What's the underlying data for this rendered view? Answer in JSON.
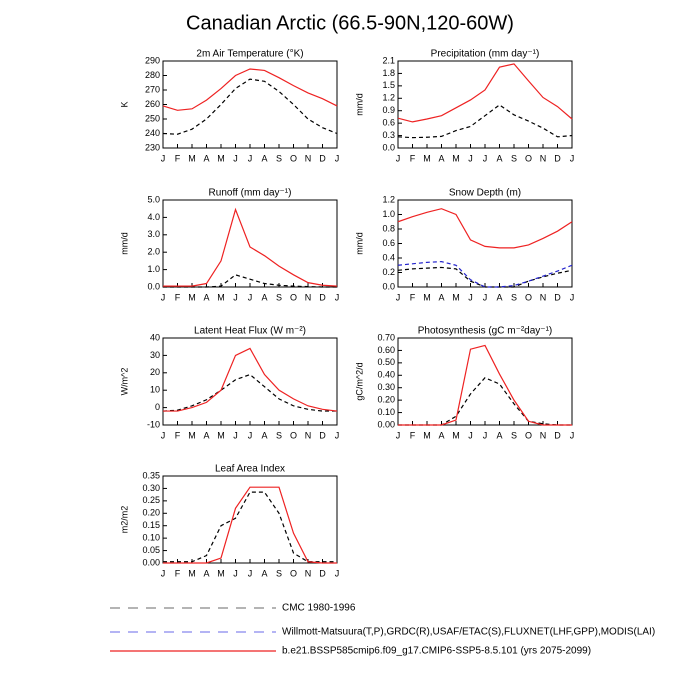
{
  "title": "Canadian Arctic (66.5-90N,120-60W)",
  "legend": [
    {
      "name": "CMC 1980-1996",
      "color": "#888888",
      "dash": true
    },
    {
      "name": "Willmott-Matsuura(T,P),GRDC(R),USAF/ETAC(S),FLUXNET(LHF,GPP),MODIS(LAI)",
      "color": "#8888ee",
      "dash": true
    },
    {
      "name": "b.e21.BSSP585cmip6.f09_g17.CMIP6-SSP5-8.5.101 (yrs 2075-2099)",
      "color": "#ee2222",
      "dash": false
    }
  ],
  "chart_data": [
    {
      "type": "line",
      "title": "2m Air Temperature (°K)",
      "y_label": "K",
      "categories": [
        "J",
        "F",
        "M",
        "A",
        "M",
        "J",
        "J",
        "A",
        "S",
        "O",
        "N",
        "D",
        "J"
      ],
      "ylim": [
        230,
        290
      ],
      "yticks": [
        230,
        240,
        250,
        260,
        270,
        280,
        290
      ],
      "series": [
        {
          "color": "#000000",
          "dash": true,
          "values": [
            240,
            239.5,
            243,
            250,
            260,
            271,
            277.5,
            276,
            269,
            260,
            250,
            244,
            240
          ]
        },
        {
          "color": "#ee2222",
          "dash": false,
          "values": [
            259,
            256,
            257,
            263,
            271,
            280,
            284.5,
            283.5,
            278.5,
            273,
            268,
            264,
            259
          ]
        }
      ]
    },
    {
      "type": "line",
      "title": "Precipitation (mm day⁻¹)",
      "y_label": "mm/d",
      "categories": [
        "J",
        "F",
        "M",
        "A",
        "M",
        "J",
        "J",
        "A",
        "S",
        "O",
        "N",
        "D",
        "J"
      ],
      "ylim": [
        0,
        2.1
      ],
      "yticks": [
        {
          "value": 0,
          "label": "0.0"
        },
        0.3,
        0.6,
        0.9,
        1.2,
        1.5,
        1.8,
        2.1
      ],
      "series": [
        {
          "color": "#000000",
          "dash": true,
          "values": [
            0.27,
            0.25,
            0.26,
            0.28,
            0.42,
            0.52,
            0.78,
            1.04,
            0.8,
            0.65,
            0.48,
            0.27,
            0.3
          ]
        },
        {
          "color": "#ee2222",
          "dash": false,
          "values": [
            0.72,
            0.63,
            0.7,
            0.78,
            0.97,
            1.16,
            1.4,
            1.95,
            2.03,
            1.62,
            1.22,
            1.0,
            0.7
          ]
        }
      ]
    },
    {
      "type": "line",
      "title": "Runoff (mm day⁻¹)",
      "y_label": "mm/d",
      "categories": [
        "J",
        "F",
        "M",
        "A",
        "M",
        "J",
        "J",
        "A",
        "S",
        "O",
        "N",
        "D",
        "J"
      ],
      "ylim": [
        0,
        5
      ],
      "yticks": [
        {
          "value": 0,
          "label": "0.0"
        },
        {
          "value": 1,
          "label": "1.0"
        },
        {
          "value": 2,
          "label": "2.0"
        },
        {
          "value": 3,
          "label": "3.0"
        },
        {
          "value": 4,
          "label": "4.0"
        },
        {
          "value": 5,
          "label": "5.0"
        }
      ],
      "series": [
        {
          "color": "#000000",
          "dash": true,
          "values": [
            0,
            0,
            0,
            0,
            0.05,
            0.7,
            0.45,
            0.2,
            0.1,
            0.05,
            0.02,
            0,
            0
          ]
        },
        {
          "color": "#ee2222",
          "dash": false,
          "values": [
            0.05,
            0.05,
            0.05,
            0.2,
            1.5,
            4.45,
            2.3,
            1.8,
            1.2,
            0.7,
            0.25,
            0.1,
            0.05
          ]
        }
      ]
    },
    {
      "type": "line",
      "title": "Snow Depth (m)",
      "y_label": "mm/d",
      "categories": [
        "J",
        "F",
        "M",
        "A",
        "M",
        "J",
        "J",
        "A",
        "S",
        "O",
        "N",
        "D",
        "J"
      ],
      "ylim": [
        0,
        1.2
      ],
      "yticks": [
        {
          "value": 0,
          "label": "0.0"
        },
        0.2,
        0.4,
        0.6,
        0.8,
        {
          "value": 1,
          "label": "1.0"
        },
        1.2
      ],
      "series": [
        {
          "color": "#000000",
          "dash": true,
          "values": [
            0.23,
            0.25,
            0.26,
            0.27,
            0.25,
            0.08,
            0,
            0,
            0,
            0.08,
            0.14,
            0.19,
            0.23
          ]
        },
        {
          "color": "#2222cc",
          "dash": true,
          "values": [
            0.3,
            0.32,
            0.34,
            0.35,
            0.3,
            0.1,
            0,
            0,
            0.02,
            0.08,
            0.15,
            0.22,
            0.3
          ]
        },
        {
          "color": "#ee2222",
          "dash": false,
          "values": [
            0.9,
            0.97,
            1.03,
            1.08,
            1.0,
            0.65,
            0.56,
            0.54,
            0.54,
            0.58,
            0.67,
            0.77,
            0.9
          ]
        }
      ]
    },
    {
      "type": "line",
      "title": "Latent Heat Flux (W m⁻²)",
      "y_label": "W/m^2",
      "categories": [
        "J",
        "F",
        "M",
        "A",
        "M",
        "J",
        "J",
        "A",
        "S",
        "O",
        "N",
        "D",
        "J"
      ],
      "ylim": [
        -10,
        40
      ],
      "yticks": [
        -10,
        0,
        10,
        20,
        30,
        40
      ],
      "series": [
        {
          "color": "#000000",
          "dash": true,
          "values": [
            -2,
            -1.5,
            1,
            4.5,
            10,
            16,
            19,
            12,
            5,
            1,
            -1,
            -2,
            -2
          ]
        },
        {
          "color": "#ee2222",
          "dash": false,
          "values": [
            -2,
            -2,
            0,
            3,
            10,
            30,
            34,
            19,
            10,
            5,
            1,
            -1,
            -2
          ]
        }
      ]
    },
    {
      "type": "line",
      "title": "Photosynthesis (gC m⁻²day⁻¹)",
      "y_label": "gC/m^2/d",
      "categories": [
        "J",
        "F",
        "M",
        "A",
        "M",
        "J",
        "J",
        "A",
        "S",
        "O",
        "N",
        "D",
        "J"
      ],
      "ylim": [
        0,
        0.7
      ],
      "yticks": [
        {
          "value": 0,
          "label": "0.00"
        },
        {
          "value": 0.1,
          "label": "0.10"
        },
        {
          "value": 0.2,
          "label": "0.20"
        },
        {
          "value": 0.3,
          "label": "0.30"
        },
        {
          "value": 0.4,
          "label": "0.40"
        },
        {
          "value": 0.5,
          "label": "0.50"
        },
        {
          "value": 0.6,
          "label": "0.60"
        },
        {
          "value": 0.7,
          "label": "0.70"
        }
      ],
      "series": [
        {
          "color": "#000000",
          "dash": true,
          "values": [
            0,
            0,
            0,
            0,
            0.07,
            0.25,
            0.38,
            0.33,
            0.17,
            0.03,
            0.01,
            0,
            0
          ]
        },
        {
          "color": "#ee2222",
          "dash": false,
          "values": [
            0,
            0,
            0,
            0,
            0.04,
            0.61,
            0.64,
            0.41,
            0.2,
            0.03,
            0,
            0,
            0
          ]
        }
      ]
    },
    {
      "type": "line",
      "title": "Leaf Area Index",
      "y_label": "m2/m2",
      "categories": [
        "J",
        "F",
        "M",
        "A",
        "M",
        "J",
        "J",
        "A",
        "S",
        "O",
        "N",
        "D",
        "J"
      ],
      "ylim": [
        0,
        0.35
      ],
      "yticks": [
        {
          "value": 0,
          "label": "0.00"
        },
        0.05,
        {
          "value": 0.1,
          "label": "0.10"
        },
        0.15,
        {
          "value": 0.2,
          "label": "0.20"
        },
        0.25,
        {
          "value": 0.3,
          "label": "0.30"
        },
        0.35
      ],
      "series": [
        {
          "color": "#000000",
          "dash": true,
          "values": [
            0.005,
            0.005,
            0.005,
            0.03,
            0.15,
            0.18,
            0.285,
            0.285,
            0.2,
            0.04,
            0.005,
            0.005,
            0.005
          ]
        },
        {
          "color": "#ee2222",
          "dash": false,
          "values": [
            0,
            0,
            0,
            0,
            0.02,
            0.22,
            0.305,
            0.305,
            0.305,
            0.12,
            0.005,
            0,
            0
          ]
        }
      ]
    }
  ]
}
